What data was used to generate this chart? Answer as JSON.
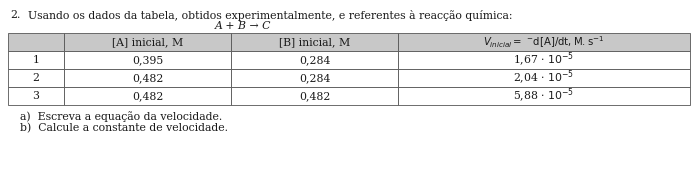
{
  "title_number": "2.",
  "title_text": "Usando os dados da tabela, obtidos experimentalmente, e referentes à reacção química:",
  "reaction": "A + B → C",
  "col_headers": [
    "",
    "[A] inicial, M",
    "[B] inicial, M",
    "V₀ = ˇd[A]/dt,M.s⁻¹"
  ],
  "rows": [
    [
      "1",
      "0,395",
      "0,284",
      "1,67"
    ],
    [
      "2",
      "0,482",
      "0,284",
      "2,04"
    ],
    [
      "3",
      "0,482",
      "0,482",
      "5,88"
    ]
  ],
  "row_exp": [
    "-5",
    "-5",
    "-5"
  ],
  "footer_a": "a)  Escreva a equação da velocidade.",
  "footer_b": "b)  Calcule a constante de velocidade.",
  "header_bg": "#c8c8c8",
  "bg_white": "#ffffff",
  "text_color": "#1a1a1a",
  "font_size": 7.8
}
